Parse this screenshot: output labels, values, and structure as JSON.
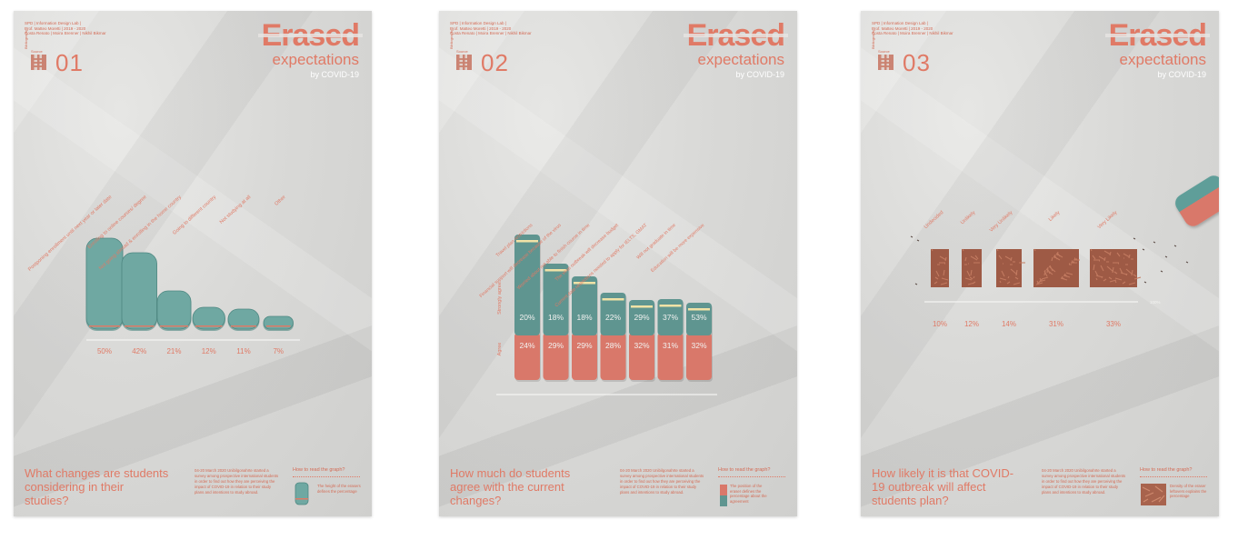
{
  "posters": [
    {
      "credits": "SPD | Information Design Lab |\nProf. Matteo Moretti | 2019 - 2020\nCosta Renato | Moira Brenner | Nikhil Bikmar",
      "source_tag": "Bibliography",
      "source_label": "Source",
      "number": "01",
      "brand_line1": "Erased",
      "brand_line2": "expectations",
      "brand_line3": "by COVID-19",
      "question": "What changes are students considering in their studies?",
      "description": "04-20 March 2020 Unibilgonahrte started a survey among prospective international students in order to find out how they are perceiving the impact of COVID-19 in relation to their study plans and intentions to study abroad.",
      "howto_title": "How to read the graph?",
      "legend_text": "The height of the erasers defines the percentage"
    },
    {
      "credits": "SPD | Information Design Lab |\nProf. Matteo Moretti | 2019 - 2020\nCosta Renato | Moira Brenner | Nikhil Bikmar",
      "source_tag": "Bibliography",
      "source_label": "Source",
      "number": "02",
      "brand_line1": "Erased",
      "brand_line2": "expectations",
      "brand_line3": "by COVID-19",
      "question": "How much do students agree with the current changes?",
      "description": "04-20 March 2020 Unibilgonahrte started a survey among prospective international students in order to find out how they are perceiving the impact of COVID-19 in relation to their study plans and intentions to study abroad.",
      "howto_title": "How to read the graph?",
      "legend_text": "The position of the eraser defines the percentage about the agreement"
    },
    {
      "credits": "SPD | Information Design Lab |\nProf. Matteo Moretti | 2019 - 2020\nCosta Renato | Moira Brenner | Nikhil Bikmar",
      "source_tag": "Bibliography",
      "source_label": "Source",
      "number": "03",
      "brand_line1": "Erased",
      "brand_line2": "expectations",
      "brand_line3": "by COVID-19",
      "question": "How likely it is that COVID-19 outbreak will affect students plan?",
      "description": "04-20 March 2020 Unibilgonahrte started a survey among prospective international students in order to find out how they are perceiving the impact of COVID-19 in relation to their study plans and intentions to study abroad.",
      "howto_title": "How to read the graph?",
      "legend_text": "Density of the eraser leftovers explains the percentage"
    }
  ],
  "chart_data": [
    {
      "type": "bar",
      "categories": [
        "Postponing enrollment until next year or later date",
        "Enrolling to online courses/ degree",
        "Not going abroad & enrolling in the home country",
        "Going to different country",
        "Not studying at all",
        "Other"
      ],
      "values": [
        50,
        42,
        21,
        12,
        11,
        7
      ],
      "value_labels": [
        "50%",
        "42%",
        "21%",
        "12%",
        "11%",
        "7%"
      ],
      "ylim": [
        0,
        50
      ],
      "colors": {
        "eraser": "#6fa8a2",
        "eraser_dark": "#4f8882",
        "accent": "#e07a66"
      }
    },
    {
      "type": "bar",
      "categories": [
        "Travel plan restrictions",
        "Financial support will decrease because of the virus",
        "Worried about not able to finish course in time",
        "The virus outbreak will decrease budget",
        "Current date restrictions needed to apply for IELTS, GMAT",
        "Will not graduate in time",
        "Education will be more expensive"
      ],
      "series": [
        {
          "name": "Strongly agree",
          "values": [
            20,
            18,
            18,
            22,
            29,
            37,
            53
          ],
          "labels": [
            "20%",
            "18%",
            "18%",
            "22%",
            "29%",
            "37%",
            "53%"
          ],
          "color": "#5f9590"
        },
        {
          "name": "Agree",
          "values": [
            24,
            29,
            29,
            28,
            32,
            31,
            32
          ],
          "labels": [
            "24%",
            "29%",
            "29%",
            "28%",
            "32%",
            "31%",
            "32%"
          ],
          "color": "#d9786a"
        }
      ],
      "colors": {
        "stripe": "#f0e2a6",
        "accent": "#e07a66"
      }
    },
    {
      "type": "bar",
      "categories": [
        "Undecided",
        "Unlikely",
        "Very Unlikely",
        "Likely",
        "Very Likely"
      ],
      "values": [
        10,
        12,
        14,
        31,
        33
      ],
      "value_labels": [
        "10%",
        "12%",
        "14%",
        "31%",
        "33%"
      ],
      "axis_max_label": "100%",
      "colors": {
        "shavings": "#9e5a45",
        "shavings_light": "#c27a60",
        "accent": "#e07a66"
      }
    }
  ]
}
